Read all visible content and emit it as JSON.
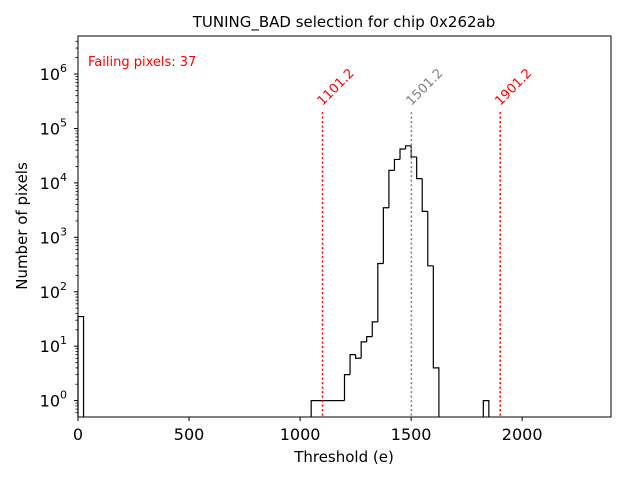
{
  "chart_data": {
    "type": "histogram",
    "title": "TUNING_BAD selection for chip 0x262ab",
    "xlabel": "Threshold (e)",
    "ylabel": "Number of pixels",
    "xlim": [
      0,
      2400
    ],
    "ylim_log": [
      0.5,
      5000000
    ],
    "yscale": "log",
    "x_ticks": [
      0,
      500,
      1000,
      1500,
      2000
    ],
    "x_tick_labels": [
      "0",
      "500",
      "1000",
      "1500",
      "2000"
    ],
    "y_ticks": [
      1,
      10,
      100,
      1000,
      10000,
      100000,
      1000000
    ],
    "y_tick_labels": [
      {
        "base": "10",
        "exp": "0"
      },
      {
        "base": "10",
        "exp": "1"
      },
      {
        "base": "10",
        "exp": "2"
      },
      {
        "base": "10",
        "exp": "3"
      },
      {
        "base": "10",
        "exp": "4"
      },
      {
        "base": "10",
        "exp": "5"
      },
      {
        "base": "10",
        "exp": "6"
      }
    ],
    "bins": [
      {
        "x0": 0,
        "x1": 25,
        "count": 35
      },
      {
        "x0": 1050,
        "x1": 1100,
        "count": 1
      },
      {
        "x0": 1100,
        "x1": 1150,
        "count": 1
      },
      {
        "x0": 1150,
        "x1": 1200,
        "count": 1
      },
      {
        "x0": 1200,
        "x1": 1225,
        "count": 3
      },
      {
        "x0": 1225,
        "x1": 1250,
        "count": 7
      },
      {
        "x0": 1250,
        "x1": 1275,
        "count": 6
      },
      {
        "x0": 1275,
        "x1": 1300,
        "count": 12
      },
      {
        "x0": 1300,
        "x1": 1325,
        "count": 15
      },
      {
        "x0": 1325,
        "x1": 1350,
        "count": 28
      },
      {
        "x0": 1350,
        "x1": 1375,
        "count": 330
      },
      {
        "x0": 1375,
        "x1": 1400,
        "count": 3500
      },
      {
        "x0": 1400,
        "x1": 1425,
        "count": 17000
      },
      {
        "x0": 1425,
        "x1": 1450,
        "count": 27000
      },
      {
        "x0": 1450,
        "x1": 1475,
        "count": 42000
      },
      {
        "x0": 1475,
        "x1": 1500,
        "count": 48000
      },
      {
        "x0": 1500,
        "x1": 1525,
        "count": 30000
      },
      {
        "x0": 1525,
        "x1": 1550,
        "count": 12000
      },
      {
        "x0": 1550,
        "x1": 1575,
        "count": 3000
      },
      {
        "x0": 1575,
        "x1": 1600,
        "count": 300
      },
      {
        "x0": 1600,
        "x1": 1625,
        "count": 4
      },
      {
        "x0": 1825,
        "x1": 1850,
        "count": 1
      }
    ],
    "lines": [
      {
        "x": 1101.2,
        "label": "1101.2",
        "color": "#ff0000",
        "style": "dotted"
      },
      {
        "x": 1501.2,
        "label": "1501.2",
        "color": "#808080",
        "style": "dotted"
      },
      {
        "x": 1901.2,
        "label": "1901.2",
        "color": "#ff0000",
        "style": "dotted"
      }
    ],
    "line_top_value": 200000,
    "annotation": {
      "text": "Failing pixels: 37",
      "color": "#ff0000",
      "placement": "top-left"
    }
  }
}
